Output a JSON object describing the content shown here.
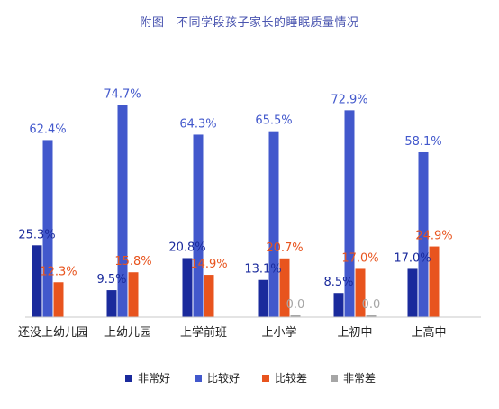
{
  "chart_data": {
    "type": "bar",
    "title": "附图　不同学段孩子家长的睡眠质量情况",
    "categories": [
      "还没上幼儿园",
      "上幼儿园",
      "上学前班",
      "上小学",
      "上初中",
      "上高中"
    ],
    "series": [
      {
        "name": "非常好",
        "color": "#1a2a9c",
        "values": [
          25.3,
          9.5,
          20.8,
          13.1,
          8.5,
          17.0
        ],
        "labels": [
          "25.3%",
          "9.5%",
          "20.8%",
          "13.1%",
          "8.5%",
          "17.0%"
        ]
      },
      {
        "name": "比较好",
        "color": "#4258cc",
        "values": [
          62.4,
          74.7,
          64.3,
          65.5,
          72.9,
          58.1
        ],
        "labels": [
          "62.4%",
          "74.7%",
          "64.3%",
          "65.5%",
          "72.9%",
          "58.1%"
        ]
      },
      {
        "name": "比较差",
        "color": "#e8541e",
        "values": [
          12.3,
          15.8,
          14.9,
          20.7,
          17.0,
          24.9
        ],
        "labels": [
          "12.3%",
          "15.8%",
          "14.9%",
          "20.7%",
          "17.0%",
          "24.9%"
        ]
      },
      {
        "name": "非常差",
        "color": "#a6a6a6",
        "values": [
          null,
          null,
          null,
          0.0,
          0.0,
          null
        ],
        "labels": [
          null,
          null,
          null,
          "0.0",
          "0.0",
          null
        ]
      }
    ],
    "label_colors": [
      "#1a2a9c",
      "#4258cc",
      "#e8541e",
      "#a6a6a6"
    ],
    "ylim": [
      0,
      80
    ],
    "grid": false,
    "legend_position": "bottom"
  }
}
